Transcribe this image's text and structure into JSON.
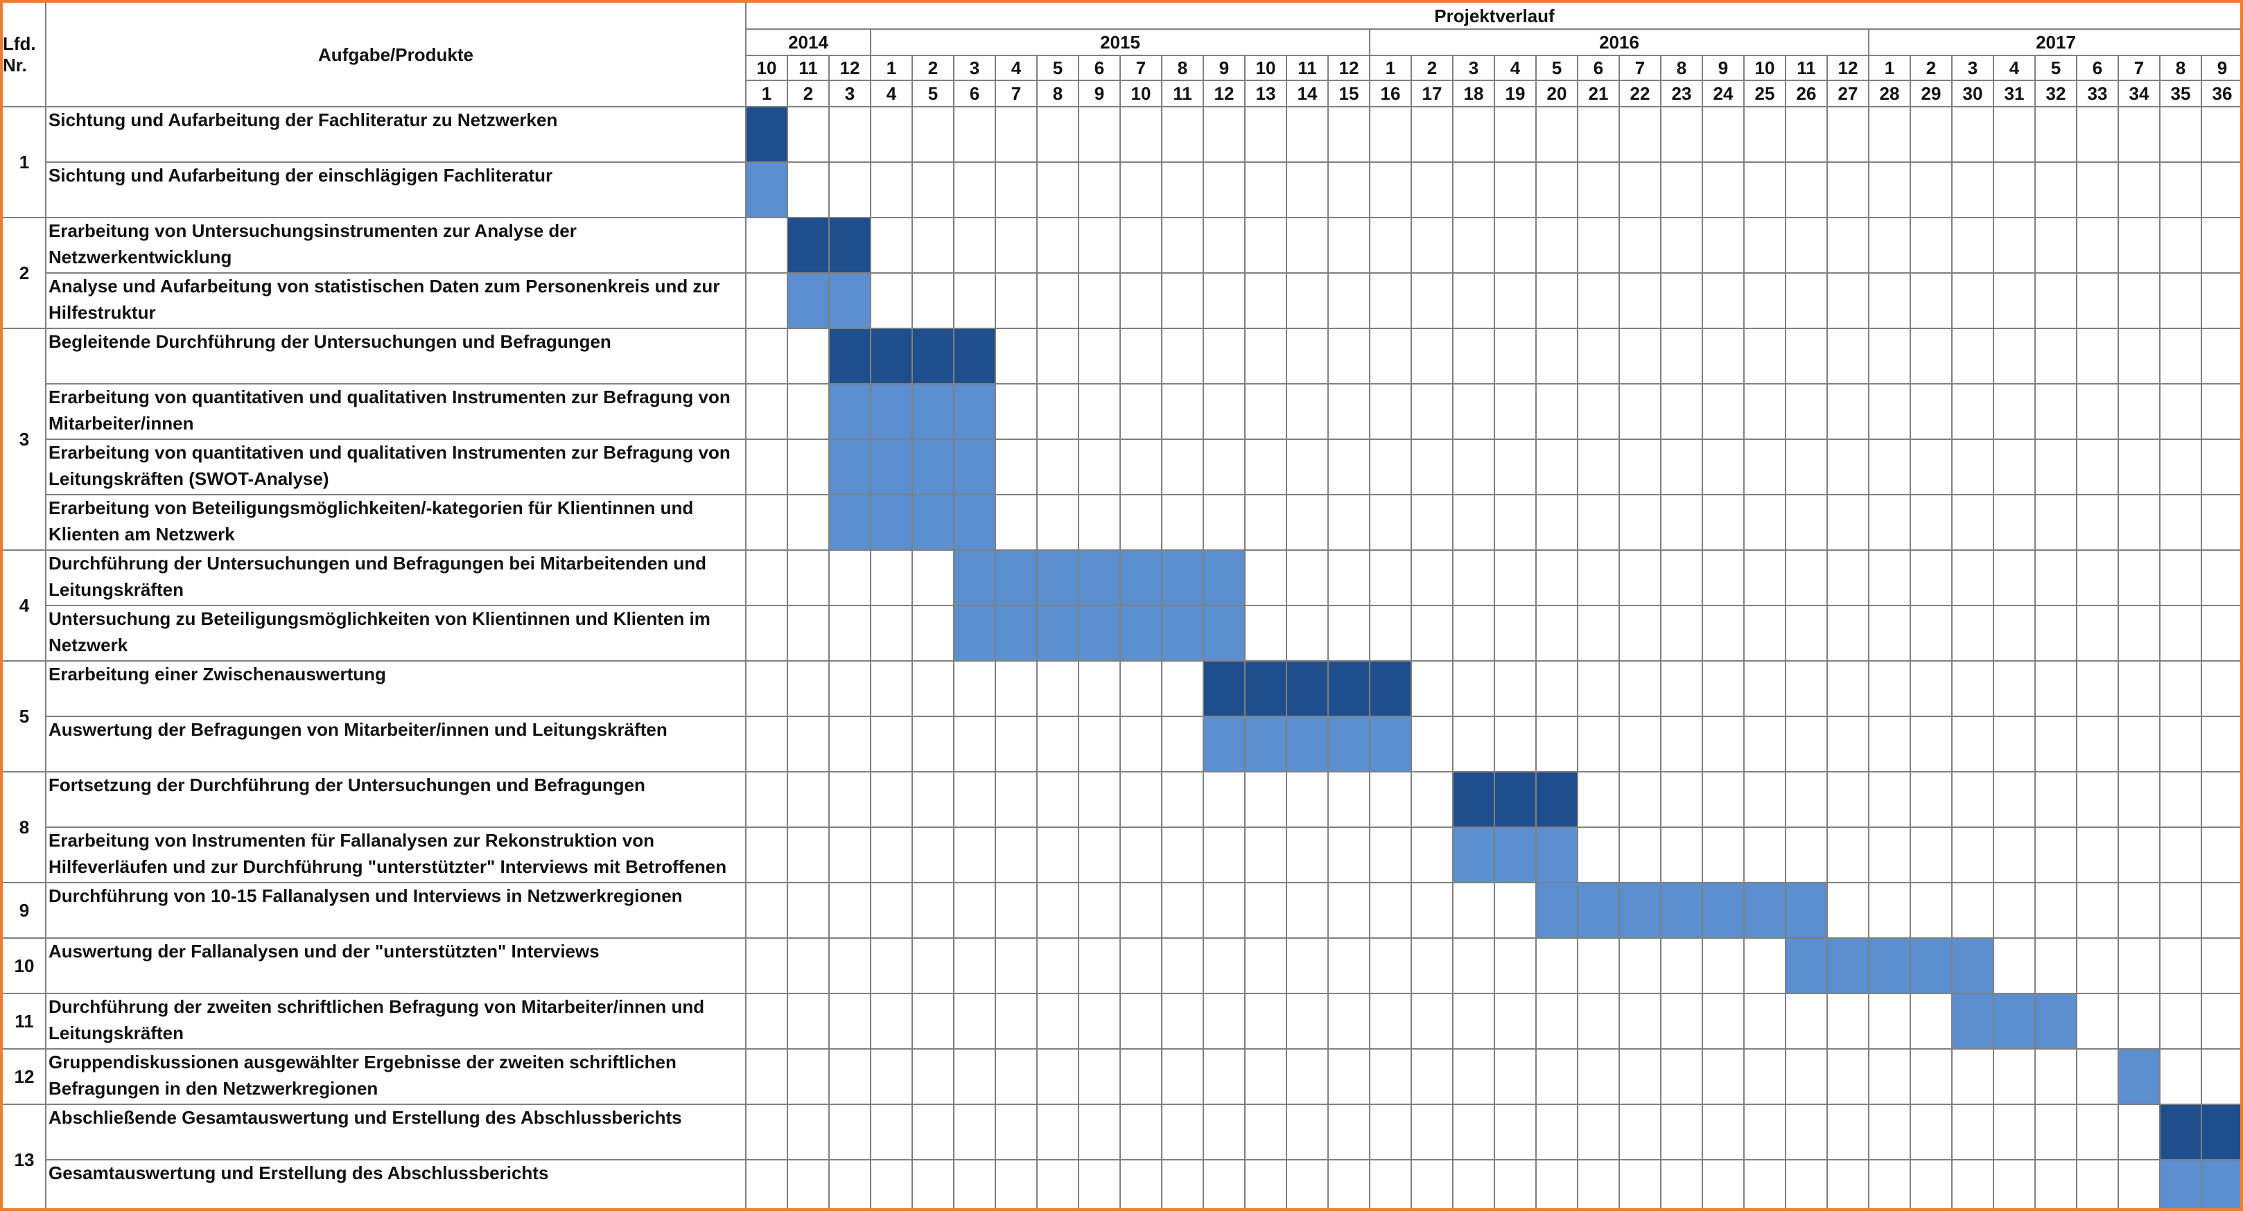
{
  "chart_data": {
    "type": "gantt",
    "headers": {
      "number": "Lfd. Nr.",
      "task": "Aufgabe/Produkte",
      "timeline": "Projektverlauf"
    },
    "years": [
      {
        "label": "2014",
        "months": 3
      },
      {
        "label": "2015",
        "months": 12
      },
      {
        "label": "2016",
        "months": 12
      },
      {
        "label": "2017",
        "months": 9
      }
    ],
    "month_labels": [
      "10",
      "11",
      "12",
      "1",
      "2",
      "3",
      "4",
      "5",
      "6",
      "7",
      "8",
      "9",
      "10",
      "11",
      "12",
      "1",
      "2",
      "3",
      "4",
      "5",
      "6",
      "7",
      "8",
      "9",
      "10",
      "11",
      "12",
      "1",
      "2",
      "3",
      "4",
      "5",
      "6",
      "7",
      "8",
      "9"
    ],
    "month_numbers": [
      "1",
      "2",
      "3",
      "4",
      "5",
      "6",
      "7",
      "8",
      "9",
      "10",
      "11",
      "12",
      "13",
      "14",
      "15",
      "16",
      "17",
      "18",
      "19",
      "20",
      "21",
      "22",
      "23",
      "24",
      "25",
      "26",
      "27",
      "28",
      "29",
      "30",
      "31",
      "32",
      "33",
      "34",
      "35",
      "36"
    ],
    "colors": {
      "dark": "#1f4e8c",
      "light": "#5b8fd0",
      "grid": "#808080",
      "border": "#ed7d31"
    },
    "groups": [
      {
        "number": "1",
        "rows": [
          {
            "label": "Sichtung und Aufarbeitung der Fachliteratur zu Netzwerken",
            "start": 1,
            "end": 1,
            "shade": "dark"
          },
          {
            "label": "Sichtung und Aufarbeitung der einschlägigen Fachliteratur",
            "start": 1,
            "end": 1,
            "shade": "light"
          }
        ]
      },
      {
        "number": "2",
        "rows": [
          {
            "label": "Erarbeitung von Untersuchungsinstrumenten zur Analyse der Netzwerkentwicklung",
            "start": 2,
            "end": 3,
            "shade": "dark"
          },
          {
            "label": "Analyse und Aufarbeitung von statistischen Daten zum Personenkreis und zur Hilfestruktur",
            "start": 2,
            "end": 3,
            "shade": "light"
          }
        ]
      },
      {
        "number": "3",
        "rows": [
          {
            "label": "Begleitende Durchführung der Untersuchungen und Befragungen",
            "start": 3,
            "end": 6,
            "shade": "dark"
          },
          {
            "label": "Erarbeitung von quantitativen und qualitativen Instrumenten zur Befragung von Mitarbeiter/innen",
            "start": 3,
            "end": 6,
            "shade": "light"
          },
          {
            "label": "Erarbeitung von quantitativen und qualitativen Instrumenten zur Befragung von Leitungskräften (SWOT-Analyse)",
            "start": 3,
            "end": 6,
            "shade": "light"
          },
          {
            "label": "Erarbeitung von Beteiligungsmöglichkeiten/-kategorien für Klientinnen und Klienten am Netzwerk",
            "start": 3,
            "end": 6,
            "shade": "light"
          }
        ]
      },
      {
        "number": "4",
        "rows": [
          {
            "label": "Durchführung der Untersuchungen und Befragungen bei Mitarbeitenden und Leitungskräften",
            "start": 6,
            "end": 12,
            "shade": "light"
          },
          {
            "label": "Untersuchung zu Beteiligungsmöglichkeiten von Klientinnen und Klienten im Netzwerk",
            "start": 6,
            "end": 12,
            "shade": "light"
          }
        ]
      },
      {
        "number": "5",
        "rows": [
          {
            "label": "Erarbeitung einer Zwischenauswertung",
            "start": 12,
            "end": 16,
            "shade": "dark"
          },
          {
            "label": "Auswertung der Befragungen von Mitarbeiter/innen und Leitungskräften",
            "start": 12,
            "end": 16,
            "shade": "light"
          }
        ]
      },
      {
        "number": "8",
        "rows": [
          {
            "label": "Fortsetzung der Durchführung der Untersuchungen und Befragungen",
            "start": 18,
            "end": 20,
            "shade": "dark"
          },
          {
            "label": "Erarbeitung von Instrumenten für Fallanalysen zur Rekonstruktion von Hilfeverläufen und zur Durchführung \"unterstützter\" Interviews mit Betroffenen",
            "start": 18,
            "end": 20,
            "shade": "light"
          }
        ]
      },
      {
        "number": "9",
        "rows": [
          {
            "label": "Durchführung von 10-15 Fallanalysen und Interviews in Netzwerkregionen",
            "start": 20,
            "end": 26,
            "shade": "light"
          }
        ]
      },
      {
        "number": "10",
        "rows": [
          {
            "label": "Auswertung der Fallanalysen und der \"unterstützten\" Interviews",
            "start": 26,
            "end": 30,
            "shade": "light"
          }
        ]
      },
      {
        "number": "11",
        "rows": [
          {
            "label": "Durchführung der zweiten schriftlichen Befragung von Mitarbeiter/innen und Leitungskräften",
            "start": 30,
            "end": 32,
            "shade": "light"
          }
        ]
      },
      {
        "number": "12",
        "rows": [
          {
            "label": "Gruppendiskussionen ausgewählter Ergebnisse der zweiten schriftlichen Befragungen in den Netzwerkregionen",
            "start": 34,
            "end": 34,
            "shade": "light"
          }
        ]
      },
      {
        "number": "13",
        "rows": [
          {
            "label": "Abschließende Gesamtauswertung und Erstellung des Abschlussberichts",
            "start": 35,
            "end": 36,
            "shade": "dark"
          },
          {
            "label": "Gesamtauswertung und Erstellung des Abschlussberichts",
            "start": 35,
            "end": 36,
            "shade": "light"
          }
        ]
      }
    ]
  }
}
